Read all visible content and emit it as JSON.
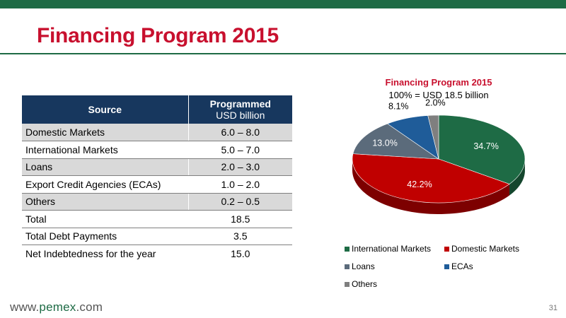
{
  "slide": {
    "title": "Financing Program 2015",
    "logo_prefix": "www.",
    "logo_brand": "pemex",
    "logo_suffix": ".com",
    "page_number": "31"
  },
  "table": {
    "headers": {
      "source": "Source",
      "programmed_line1": "Programmed",
      "programmed_line2": "USD billion"
    },
    "rows": [
      {
        "label": "Domestic Markets",
        "value": "6.0 – 8.0"
      },
      {
        "label": "International Markets",
        "value": "5.0 – 7.0"
      },
      {
        "label": "Loans",
        "value": "2.0 – 3.0"
      },
      {
        "label": "Export Credit Agencies (ECAs)",
        "value": "1.0 – 2.0"
      },
      {
        "label": "Others",
        "value": "0.2 – 0.5"
      },
      {
        "label": "Total",
        "value": "18.5"
      },
      {
        "label": "Total Debt Payments",
        "value": "3.5"
      },
      {
        "label": "Net Indebtedness for the year",
        "value": "15.0"
      }
    ]
  },
  "chart_data": {
    "type": "pie",
    "title": "Financing Program 2015",
    "subtitle": "100% = USD 18.5 billion",
    "slices": [
      {
        "name": "International Markets",
        "value": 34.7,
        "label": "34.7%",
        "color": "#1e6b45"
      },
      {
        "name": "Domestic Markets",
        "value": 42.2,
        "label": "42.2%",
        "color": "#c00000"
      },
      {
        "name": "Loans",
        "value": 13.0,
        "label": "13.0%",
        "color": "#5b6b7b"
      },
      {
        "name": "ECAs",
        "value": 8.1,
        "label": "8.1%",
        "color": "#1f5c99"
      },
      {
        "name": "Others",
        "value": 2.0,
        "label": "2.0%",
        "color": "#7f7f7f"
      }
    ],
    "legend_placement": "bottom"
  }
}
